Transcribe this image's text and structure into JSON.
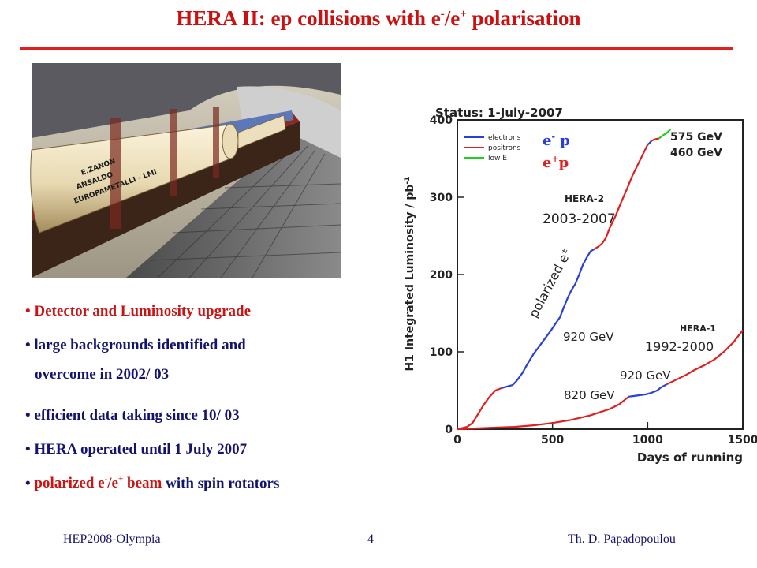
{
  "slide": {
    "title_main": "HERA II:  ep collisions with e",
    "title_sup1": "-",
    "title_mid": "/e",
    "title_sup2": "+",
    "title_end": " polarisation"
  },
  "photo": {
    "magnet_labels": [
      "E.ZANON",
      "ANSALDO",
      "EUROPAMETALLI - LMI"
    ]
  },
  "bullets": [
    {
      "text": "Detector and Luminosity upgrade"
    },
    {
      "text": "large backgrounds identified and",
      "cont": "overcome in 2002/ 03"
    },
    {
      "text": "efficient data taking since 10/ 03"
    },
    {
      "text": "HERA operated until 1 July 2007"
    },
    {
      "red": "polarized e",
      "sup1": "-",
      "red2": "/e",
      "sup2": "+",
      "red3": " beam",
      "rest": " with spin rotators"
    }
  ],
  "chart_data": {
    "type": "line",
    "status": "Status:  1-July-2007",
    "xlabel": "Days of running",
    "ylabel": "H1 Integrated Luminosity / pb",
    "ylabel_sup": "-1",
    "xlim": [
      0,
      1500
    ],
    "ylim": [
      0,
      400
    ],
    "xticks": [
      0,
      500,
      1000,
      1500
    ],
    "yticks": [
      0,
      100,
      200,
      300,
      400
    ],
    "legend": [
      {
        "name": "electrons",
        "color": "#2a3fd8",
        "tag": "e",
        "tag_sup": "-",
        "tag_end": " p"
      },
      {
        "name": "positrons",
        "color": "#e02020",
        "tag": "e",
        "tag_sup": "+",
        "tag_end": "p"
      },
      {
        "name": "low E",
        "color": "#22cc22"
      }
    ],
    "annotations": {
      "hera2": "HERA-2",
      "hera2_years": "2003-2007",
      "hera1": "HERA-1",
      "hera1_years": "1992-2000",
      "polarized": "polarized e",
      "polarized_sup": "±",
      "e920_hera2": "920 GeV",
      "e920_hera1": "920 GeV",
      "e820": "820 GeV",
      "e575": "575 GeV",
      "e460": "460 GeV"
    },
    "series": [
      {
        "colors": [
          "#e02020",
          "#2a3fd8",
          "#e02020",
          "#2a3fd8",
          "#e02020",
          "#22cc22"
        ],
        "segments": [
          [
            [
              0,
              0
            ],
            [
              20,
              1
            ],
            [
              50,
              3
            ],
            [
              80,
              8
            ],
            [
              110,
              20
            ],
            [
              140,
              32
            ],
            [
              170,
              42
            ],
            [
              200,
              50
            ],
            [
              230,
              53
            ]
          ],
          [
            [
              230,
              53
            ],
            [
              260,
              55
            ],
            [
              290,
              57
            ],
            [
              310,
              62
            ],
            [
              340,
              72
            ],
            [
              370,
              85
            ],
            [
              400,
              97
            ],
            [
              430,
              107
            ],
            [
              460,
              117
            ],
            [
              490,
              127
            ],
            [
              520,
              138
            ],
            [
              540,
              145
            ],
            [
              560,
              158
            ],
            [
              580,
              170
            ],
            [
              600,
              180
            ],
            [
              620,
              188
            ],
            [
              640,
              200
            ],
            [
              660,
              213
            ],
            [
              680,
              222
            ],
            [
              700,
              230
            ],
            [
              720,
              233
            ]
          ],
          [
            [
              720,
              233
            ],
            [
              740,
              236
            ],
            [
              760,
              240
            ],
            [
              780,
              247
            ],
            [
              800,
              260
            ],
            [
              830,
              275
            ],
            [
              860,
              293
            ],
            [
              890,
              310
            ],
            [
              920,
              328
            ],
            [
              950,
              343
            ],
            [
              980,
              358
            ],
            [
              1000,
              368
            ]
          ],
          [
            [
              1000,
              368
            ],
            [
              1010,
              370
            ],
            [
              1020,
              373
            ]
          ],
          [
            [
              1020,
              373
            ],
            [
              1040,
              375
            ],
            [
              1060,
              376
            ]
          ],
          [
            [
              1060,
              376
            ],
            [
              1080,
              380
            ],
            [
              1100,
              383
            ],
            [
              1120,
              388
            ]
          ]
        ]
      },
      {
        "colors": [
          "#e02020",
          "#2a3fd8",
          "#e02020"
        ],
        "segments": [
          [
            [
              0,
              0
            ],
            [
              100,
              1
            ],
            [
              200,
              2
            ],
            [
              300,
              3
            ],
            [
              400,
              5
            ],
            [
              500,
              8
            ],
            [
              600,
              12
            ],
            [
              700,
              18
            ],
            [
              800,
              26
            ],
            [
              850,
              32
            ],
            [
              880,
              38
            ],
            [
              900,
              42
            ]
          ],
          [
            [
              900,
              42
            ],
            [
              930,
              43
            ],
            [
              960,
              44
            ],
            [
              990,
              45
            ],
            [
              1020,
              47
            ],
            [
              1050,
              50
            ],
            [
              1070,
              54
            ],
            [
              1100,
              58
            ]
          ],
          [
            [
              1100,
              58
            ],
            [
              1150,
              64
            ],
            [
              1200,
              70
            ],
            [
              1250,
              77
            ],
            [
              1300,
              83
            ],
            [
              1350,
              90
            ],
            [
              1400,
              100
            ],
            [
              1450,
              112
            ],
            [
              1500,
              128
            ]
          ]
        ]
      }
    ]
  },
  "footer": {
    "left": "HEP2008-Olympia",
    "page": "4",
    "right": "Th. D. Papadopoulou"
  }
}
